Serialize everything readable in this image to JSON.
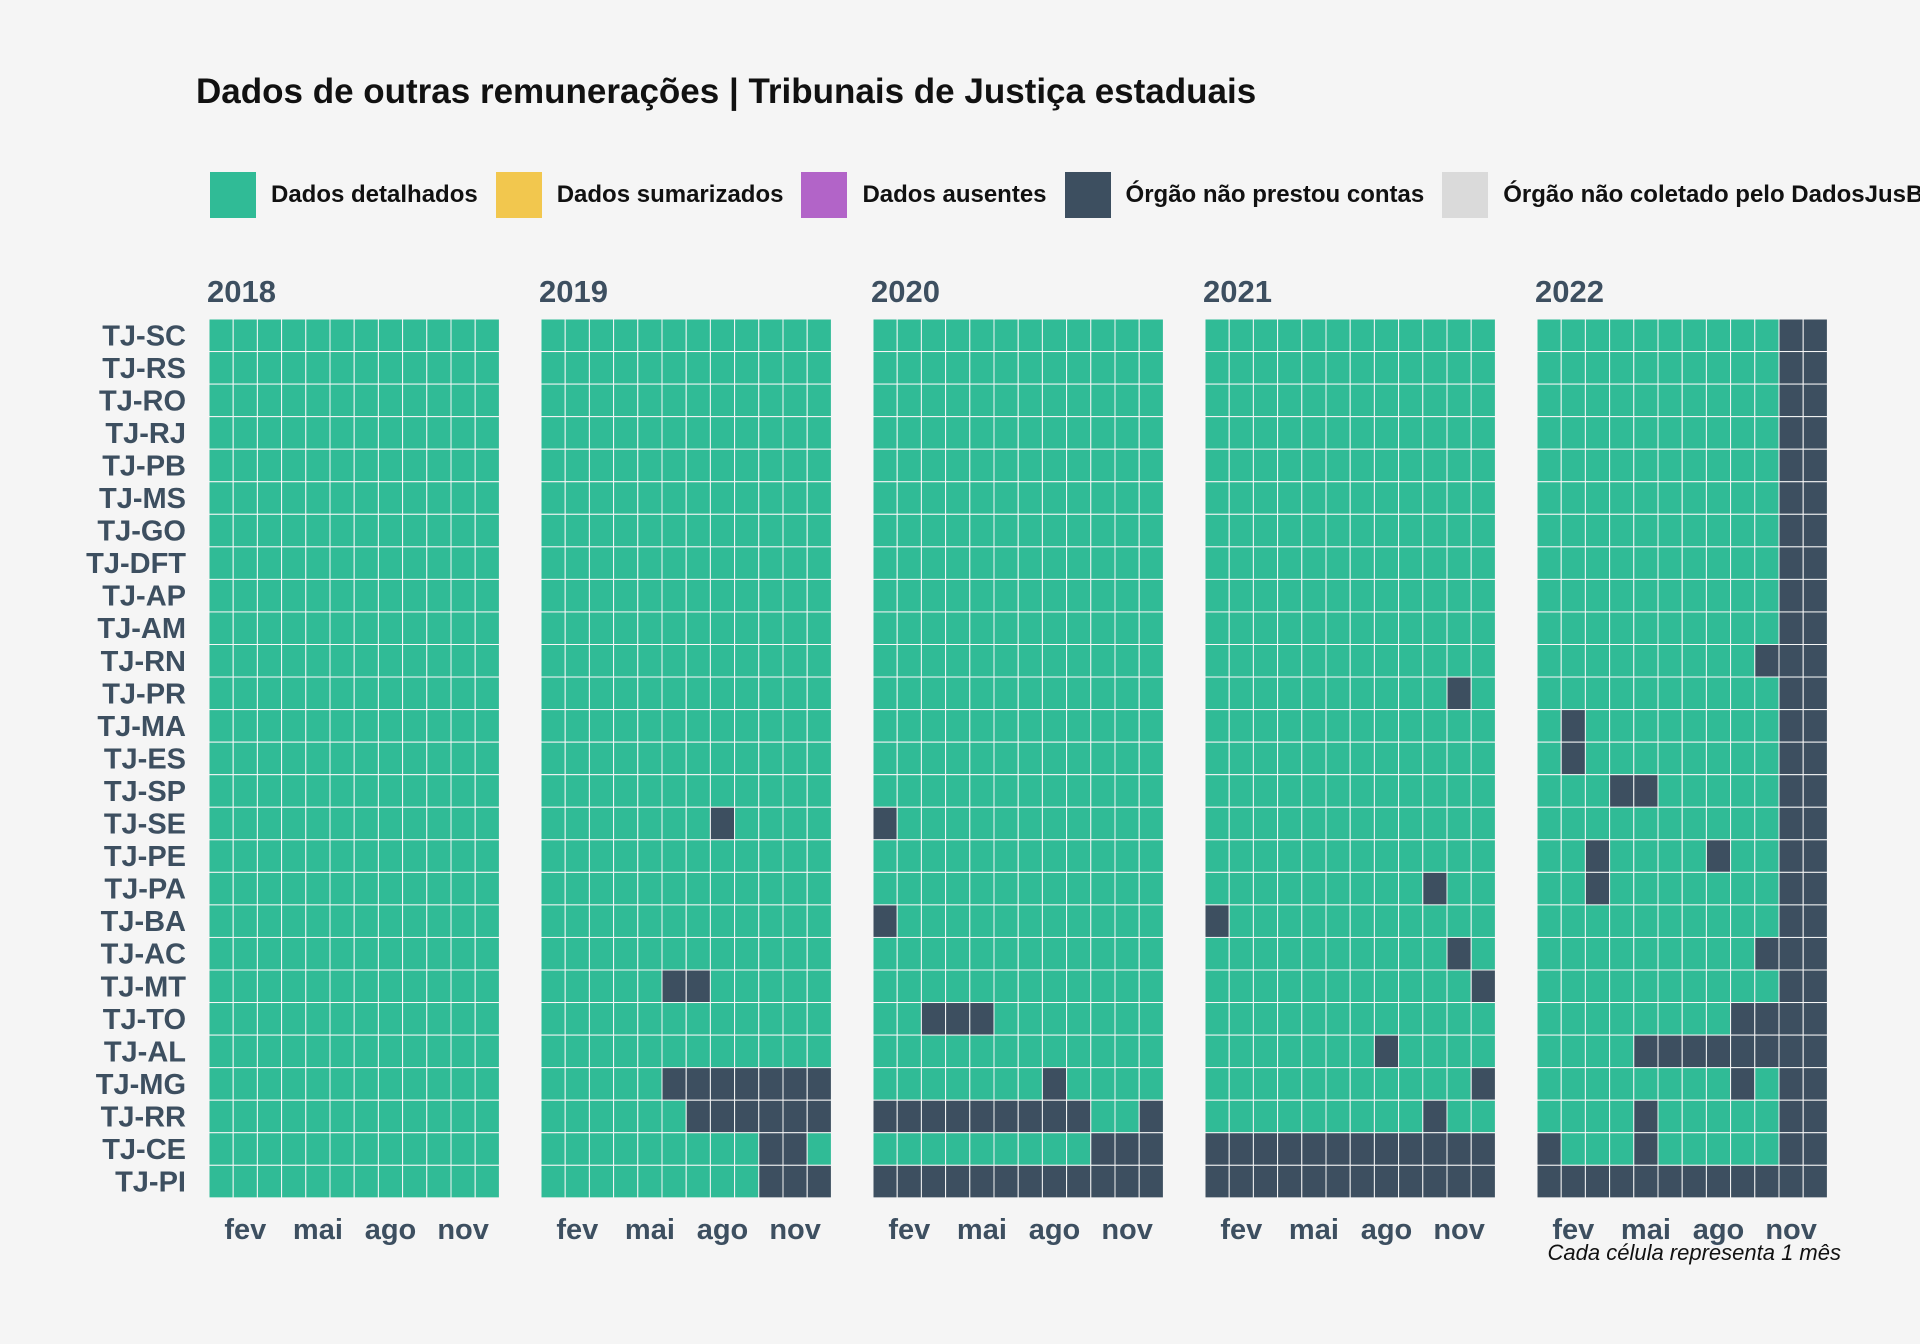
{
  "chart_data": {
    "type": "heatmap",
    "title": "Dados de outras remunerações | Tribunais de Justiça estaduais",
    "caption": "Cada célula representa 1 mês",
    "legend": [
      {
        "key": "D",
        "label": "Dados detalhados",
        "color": "#30bb96"
      },
      {
        "key": "S",
        "label": "Dados sumarizados",
        "color": "#f2c74e"
      },
      {
        "key": "A",
        "label": "Dados ausentes",
        "color": "#b264c8"
      },
      {
        "key": "N",
        "label": "Órgão não prestou contas",
        "color": "#3d4f60"
      },
      {
        "key": "C",
        "label": "Órgão não coletado pelo DadosJusBr",
        "color": "#dadada"
      }
    ],
    "years": [
      "2018",
      "2019",
      "2020",
      "2021",
      "2022"
    ],
    "month_ticks": [
      {
        "month": 2,
        "label": "fev"
      },
      {
        "month": 5,
        "label": "mai"
      },
      {
        "month": 8,
        "label": "ago"
      },
      {
        "month": 11,
        "label": "nov"
      }
    ],
    "rows": [
      {
        "label": "TJ-SC",
        "cells": [
          "DDDDDDDDDDDD",
          "DDDDDDDDDDDD",
          "DDDDDDDDDDDD",
          "DDDDDDDDDDDD",
          "DDDDDDDDDDNN"
        ]
      },
      {
        "label": "TJ-RS",
        "cells": [
          "DDDDDDDDDDDD",
          "DDDDDDDDDDDD",
          "DDDDDDDDDDDD",
          "DDDDDDDDDDDD",
          "DDDDDDDDDDNN"
        ]
      },
      {
        "label": "TJ-RO",
        "cells": [
          "DDDDDDDDDDDD",
          "DDDDDDDDDDDD",
          "DDDDDDDDDDDD",
          "DDDDDDDDDDDD",
          "DDDDDDDDDDNN"
        ]
      },
      {
        "label": "TJ-RJ",
        "cells": [
          "DDDDDDDDDDDD",
          "DDDDDDDDDDDD",
          "DDDDDDDDDDDD",
          "DDDDDDDDDDDD",
          "DDDDDDDDDDNN"
        ]
      },
      {
        "label": "TJ-PB",
        "cells": [
          "DDDDDDDDDDDD",
          "DDDDDDDDDDDD",
          "DDDDDDDDDDDD",
          "DDDDDDDDDDDD",
          "DDDDDDDDDDNN"
        ]
      },
      {
        "label": "TJ-MS",
        "cells": [
          "DDDDDDDDDDDD",
          "DDDDDDDDDDDD",
          "DDDDDDDDDDDD",
          "DDDDDDDDDDDD",
          "DDDDDDDDDDNN"
        ]
      },
      {
        "label": "TJ-GO",
        "cells": [
          "DDDDDDDDDDDD",
          "DDDDDDDDDDDD",
          "DDDDDDDDDDDD",
          "DDDDDDDDDDDD",
          "DDDDDDDDDDNN"
        ]
      },
      {
        "label": "TJ-DFT",
        "cells": [
          "DDDDDDDDDDDD",
          "DDDDDDDDDDDD",
          "DDDDDDDDDDDD",
          "DDDDDDDDDDDD",
          "DDDDDDDDDDNN"
        ]
      },
      {
        "label": "TJ-AP",
        "cells": [
          "DDDDDDDDDDDD",
          "DDDDDDDDDDDD",
          "DDDDDDDDDDDD",
          "DDDDDDDDDDDD",
          "DDDDDDDDDDNN"
        ]
      },
      {
        "label": "TJ-AM",
        "cells": [
          "DDDDDDDDDDDD",
          "DDDDDDDDDDDD",
          "DDDDDDDDDDDD",
          "DDDDDDDDDDDD",
          "DDDDDDDDDDNN"
        ]
      },
      {
        "label": "TJ-RN",
        "cells": [
          "DDDDDDDDDDDD",
          "DDDDDDDDDDDD",
          "DDDDDDDDDDDD",
          "DDDDDDDDDDDD",
          "DDDDDDDDDNNN"
        ]
      },
      {
        "label": "TJ-PR",
        "cells": [
          "DDDDDDDDDDDD",
          "DDDDDDDDDDDD",
          "DDDDDDDDDDDD",
          "DDDDDDDDDDND",
          "DDDDDDDDDDNN"
        ]
      },
      {
        "label": "TJ-MA",
        "cells": [
          "DDDDDDDDDDDD",
          "DDDDDDDDDDDD",
          "DDDDDDDDDDDD",
          "DDDDDDDDDDDD",
          "DNDDDDDDDDNN"
        ]
      },
      {
        "label": "TJ-ES",
        "cells": [
          "DDDDDDDDDDDD",
          "DDDDDDDDDDDD",
          "DDDDDDDDDDDD",
          "DDDDDDDDDDDD",
          "DNDDDDDDDDNN"
        ]
      },
      {
        "label": "TJ-SP",
        "cells": [
          "DDDDDDDDDDDD",
          "DDDDDDDDDDDD",
          "DDDDDDDDDDDD",
          "DDDDDDDDDDDD",
          "DDDNNDDDDDNN"
        ]
      },
      {
        "label": "TJ-SE",
        "cells": [
          "DDDDDDDDDDDD",
          "DDDDDDDNDDDD",
          "NDDDDDDDDDDD",
          "DDDDDDDDDDDD",
          "DDDDDDDDDDNN"
        ]
      },
      {
        "label": "TJ-PE",
        "cells": [
          "DDDDDDDDDDDD",
          "DDDDDDDDDDDD",
          "DDDDDDDDDDDD",
          "DDDDDDDDDDDD",
          "DDNDDDDNDDNN"
        ]
      },
      {
        "label": "TJ-PA",
        "cells": [
          "DDDDDDDDDDDD",
          "DDDDDDDDDDDD",
          "DDDDDDDDDDDD",
          "DDDDDDDDDNDD",
          "DDNDDDDDDDNN"
        ]
      },
      {
        "label": "TJ-BA",
        "cells": [
          "DDDDDDDDDDDD",
          "DDDDDDDDDDDD",
          "NDDDDDDDDDDD",
          "NDDDDDDDDDDD",
          "DDDDDDDDDDNN"
        ]
      },
      {
        "label": "TJ-AC",
        "cells": [
          "DDDDDDDDDDDD",
          "DDDDDDDDDDDD",
          "DDDDDDDDDDDD",
          "DDDDDDDDDDND",
          "DDDDDDDDDNNN"
        ]
      },
      {
        "label": "TJ-MT",
        "cells": [
          "DDDDDDDDDDDD",
          "DDDDDNNDDDDD",
          "DDDDDDDDDDDD",
          "DDDDDDDDDDDN",
          "DDDDDDDDDDNN"
        ]
      },
      {
        "label": "TJ-TO",
        "cells": [
          "DDDDDDDDDDDD",
          "DDDDDDDDDDDD",
          "DDNNNDDDDDDD",
          "DDDDDDDDDDDD",
          "DDDDDDDDNNNN"
        ]
      },
      {
        "label": "TJ-AL",
        "cells": [
          "DDDDDDDDDDDD",
          "DDDDDDDDDDDD",
          "DDDDDDDDDDDD",
          "DDDDDDDNDDDD",
          "DDDDNNNNNNNN"
        ]
      },
      {
        "label": "TJ-MG",
        "cells": [
          "DDDDDDDDDDDD",
          "DDDDDNNNNNNN",
          "DDDDDDDNDDDD",
          "DDDDDDDDDDDN",
          "DDDDDDDDNDNN"
        ]
      },
      {
        "label": "TJ-RR",
        "cells": [
          "DDDDDDDDDDDD",
          "DDDDDDNNNNNN",
          "NNNNNNNNNDDN",
          "DDDDDDDDDNDD",
          "DDDDNDDDDDNN"
        ]
      },
      {
        "label": "TJ-CE",
        "cells": [
          "DDDDDDDDDDDD",
          "DDDDDDDDDNND",
          "DDDDDDDDDNNN",
          "NNNNNNNNNNNN",
          "NDDDNDDDDDNN"
        ]
      },
      {
        "label": "TJ-PI",
        "cells": [
          "DDDDDDDDDDDD",
          "DDDDDDDDDNNN",
          "NNNNNNNNNNNN",
          "NNNNNNNNNNNN",
          "NNNNNNNNNNNN"
        ]
      }
    ]
  }
}
